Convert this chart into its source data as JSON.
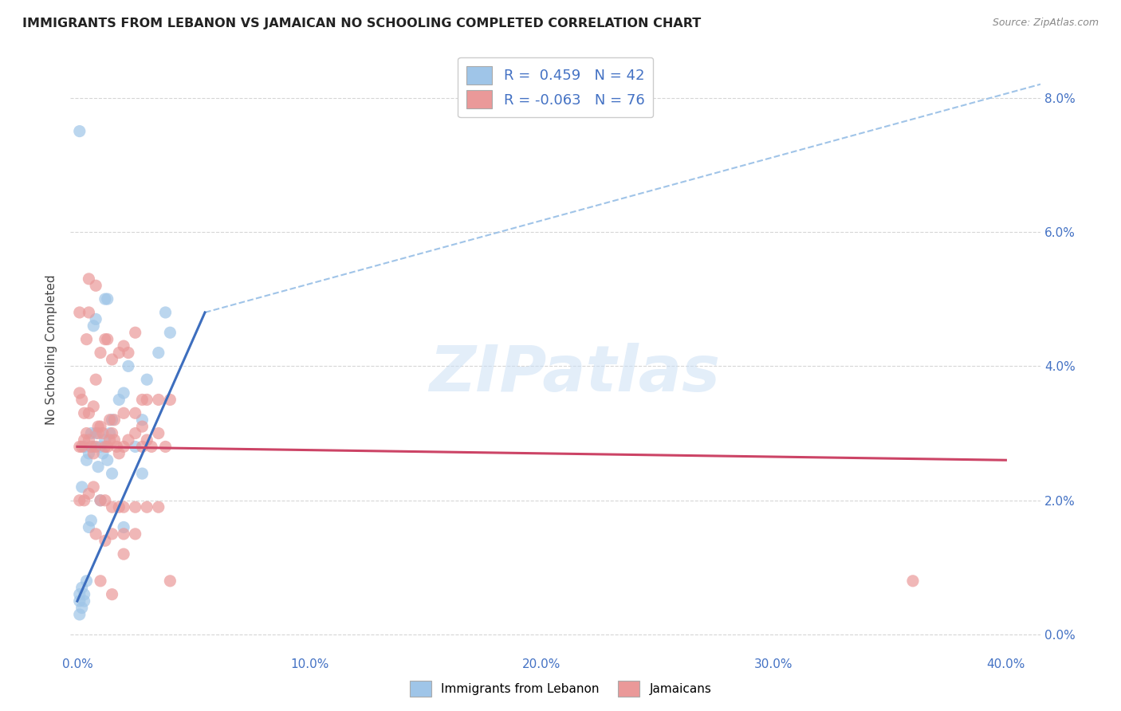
{
  "title": "IMMIGRANTS FROM LEBANON VS JAMAICAN NO SCHOOLING COMPLETED CORRELATION CHART",
  "source": "Source: ZipAtlas.com",
  "xlabel_ticks": [
    "0.0%",
    "10.0%",
    "20.0%",
    "30.0%",
    "40.0%"
  ],
  "xlabel_vals": [
    0.0,
    0.1,
    0.2,
    0.3,
    0.4
  ],
  "ylabel_ticks": [
    "0.0%",
    "2.0%",
    "4.0%",
    "6.0%",
    "8.0%"
  ],
  "ylabel_vals": [
    0.0,
    0.02,
    0.04,
    0.06,
    0.08
  ],
  "xlim": [
    -0.003,
    0.415
  ],
  "ylim": [
    -0.003,
    0.088
  ],
  "blue_color": "#9fc5e8",
  "pink_color": "#ea9999",
  "line_blue": "#3d6ebe",
  "line_pink": "#cc4466",
  "line_dashed_color": "#a0c4e8",
  "watermark": "ZIPatlas",
  "lebanon_points": [
    [
      0.001,
      0.005
    ],
    [
      0.001,
      0.006
    ],
    [
      0.001,
      0.003
    ],
    [
      0.002,
      0.004
    ],
    [
      0.002,
      0.007
    ],
    [
      0.002,
      0.022
    ],
    [
      0.003,
      0.005
    ],
    [
      0.003,
      0.006
    ],
    [
      0.003,
      0.028
    ],
    [
      0.004,
      0.026
    ],
    [
      0.004,
      0.008
    ],
    [
      0.005,
      0.027
    ],
    [
      0.005,
      0.016
    ],
    [
      0.006,
      0.03
    ],
    [
      0.006,
      0.017
    ],
    [
      0.007,
      0.028
    ],
    [
      0.007,
      0.046
    ],
    [
      0.008,
      0.03
    ],
    [
      0.008,
      0.047
    ],
    [
      0.009,
      0.025
    ],
    [
      0.01,
      0.028
    ],
    [
      0.01,
      0.02
    ],
    [
      0.011,
      0.027
    ],
    [
      0.012,
      0.029
    ],
    [
      0.012,
      0.05
    ],
    [
      0.013,
      0.026
    ],
    [
      0.013,
      0.05
    ],
    [
      0.014,
      0.03
    ],
    [
      0.015,
      0.032
    ],
    [
      0.015,
      0.024
    ],
    [
      0.018,
      0.035
    ],
    [
      0.02,
      0.036
    ],
    [
      0.02,
      0.016
    ],
    [
      0.022,
      0.04
    ],
    [
      0.025,
      0.028
    ],
    [
      0.028,
      0.032
    ],
    [
      0.028,
      0.024
    ],
    [
      0.03,
      0.038
    ],
    [
      0.035,
      0.042
    ],
    [
      0.038,
      0.048
    ],
    [
      0.04,
      0.045
    ],
    [
      0.001,
      0.075
    ]
  ],
  "jamaican_points": [
    [
      0.001,
      0.028
    ],
    [
      0.002,
      0.028
    ],
    [
      0.003,
      0.029
    ],
    [
      0.004,
      0.03
    ],
    [
      0.005,
      0.029
    ],
    [
      0.006,
      0.028
    ],
    [
      0.007,
      0.027
    ],
    [
      0.008,
      0.028
    ],
    [
      0.009,
      0.03
    ],
    [
      0.01,
      0.031
    ],
    [
      0.011,
      0.03
    ],
    [
      0.012,
      0.028
    ],
    [
      0.013,
      0.028
    ],
    [
      0.014,
      0.029
    ],
    [
      0.015,
      0.03
    ],
    [
      0.016,
      0.029
    ],
    [
      0.017,
      0.028
    ],
    [
      0.018,
      0.027
    ],
    [
      0.02,
      0.028
    ],
    [
      0.022,
      0.029
    ],
    [
      0.025,
      0.03
    ],
    [
      0.028,
      0.028
    ],
    [
      0.03,
      0.029
    ],
    [
      0.032,
      0.028
    ],
    [
      0.035,
      0.03
    ],
    [
      0.038,
      0.028
    ],
    [
      0.001,
      0.036
    ],
    [
      0.002,
      0.035
    ],
    [
      0.003,
      0.033
    ],
    [
      0.005,
      0.033
    ],
    [
      0.007,
      0.034
    ],
    [
      0.008,
      0.038
    ],
    [
      0.009,
      0.031
    ],
    [
      0.01,
      0.042
    ],
    [
      0.012,
      0.044
    ],
    [
      0.013,
      0.044
    ],
    [
      0.014,
      0.032
    ],
    [
      0.015,
      0.041
    ],
    [
      0.016,
      0.032
    ],
    [
      0.018,
      0.042
    ],
    [
      0.02,
      0.043
    ],
    [
      0.02,
      0.033
    ],
    [
      0.022,
      0.042
    ],
    [
      0.025,
      0.045
    ],
    [
      0.025,
      0.033
    ],
    [
      0.028,
      0.035
    ],
    [
      0.028,
      0.031
    ],
    [
      0.03,
      0.035
    ],
    [
      0.035,
      0.035
    ],
    [
      0.001,
      0.02
    ],
    [
      0.003,
      0.02
    ],
    [
      0.005,
      0.021
    ],
    [
      0.007,
      0.022
    ],
    [
      0.01,
      0.02
    ],
    [
      0.012,
      0.02
    ],
    [
      0.015,
      0.019
    ],
    [
      0.018,
      0.019
    ],
    [
      0.02,
      0.019
    ],
    [
      0.025,
      0.019
    ],
    [
      0.03,
      0.019
    ],
    [
      0.035,
      0.019
    ],
    [
      0.008,
      0.015
    ],
    [
      0.012,
      0.014
    ],
    [
      0.015,
      0.015
    ],
    [
      0.02,
      0.012
    ],
    [
      0.025,
      0.015
    ],
    [
      0.01,
      0.008
    ],
    [
      0.015,
      0.006
    ],
    [
      0.001,
      0.048
    ],
    [
      0.004,
      0.044
    ],
    [
      0.005,
      0.048
    ],
    [
      0.005,
      0.053
    ],
    [
      0.008,
      0.052
    ],
    [
      0.02,
      0.015
    ],
    [
      0.36,
      0.008
    ],
    [
      0.04,
      0.035
    ],
    [
      0.04,
      0.008
    ]
  ],
  "blue_line_x0": 0.0,
  "blue_line_y0": 0.005,
  "blue_line_x1": 0.055,
  "blue_line_y1": 0.048,
  "pink_line_x0": 0.0,
  "pink_line_y0": 0.028,
  "pink_line_x1": 0.4,
  "pink_line_y1": 0.026,
  "dash_line_x0": 0.055,
  "dash_line_y0": 0.048,
  "dash_line_x1": 0.415,
  "dash_line_y1": 0.082
}
